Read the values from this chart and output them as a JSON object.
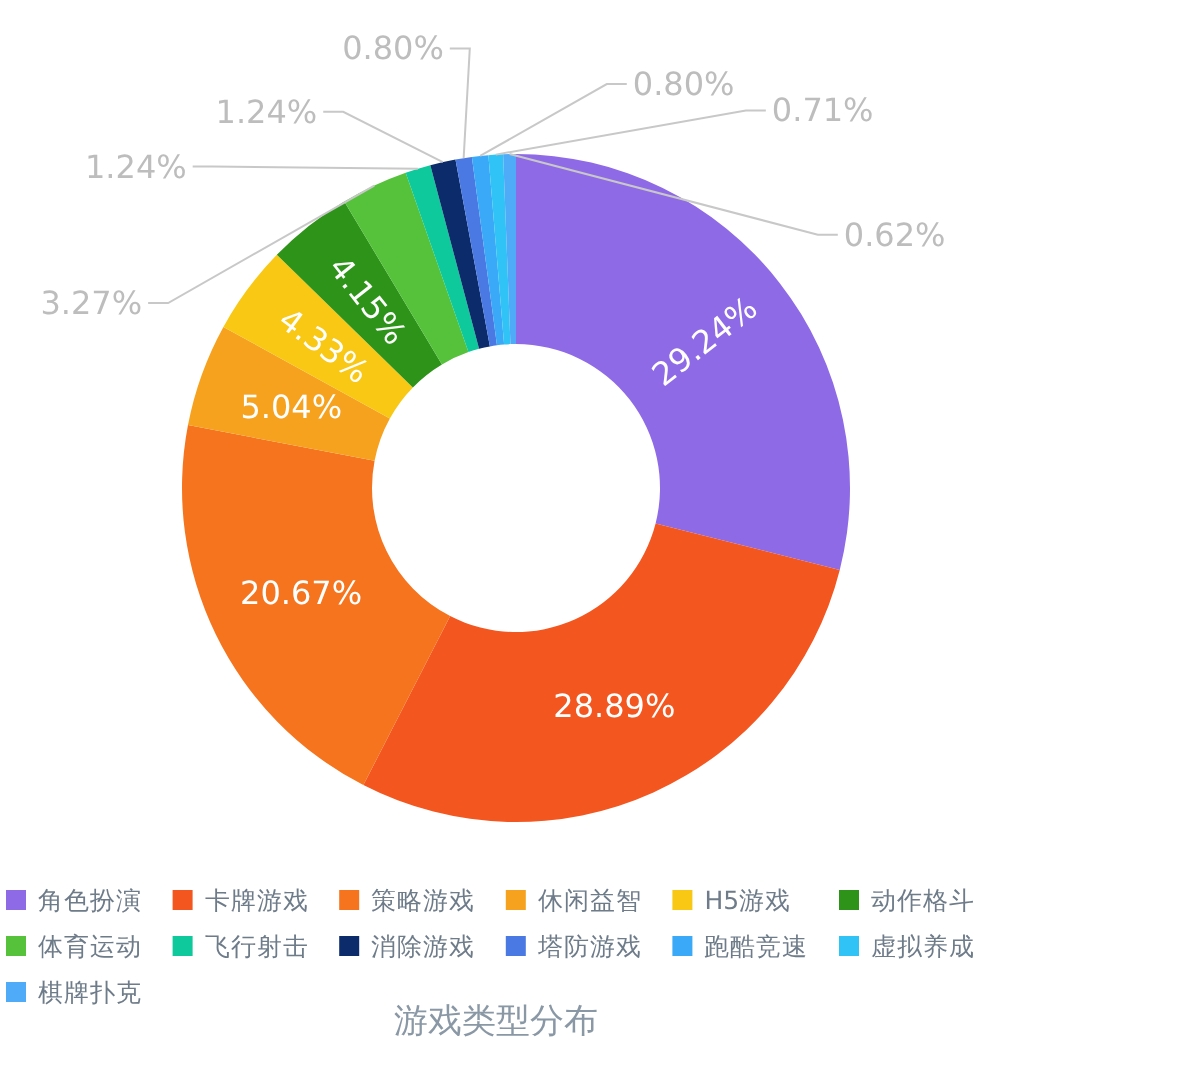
{
  "chart_data": {
    "type": "donut",
    "title": "游戏类型分布",
    "categories": [
      "角色扮演",
      "卡牌游戏",
      "策略游戏",
      "休闲益智",
      "H5游戏",
      "动作格斗",
      "体育运动",
      "飞行射击",
      "消除游戏",
      "塔防游戏",
      "跑酷竞速",
      "虚拟养成",
      "棋牌扑克"
    ],
    "values": [
      29.24,
      28.89,
      20.67,
      5.04,
      4.33,
      4.15,
      3.27,
      1.24,
      1.24,
      0.8,
      0.8,
      0.71,
      0.62
    ],
    "value_labels": [
      "29.24%",
      "28.89%",
      "20.67%",
      "5.04%",
      "4.33%",
      "4.15%",
      "3.27%",
      "1.24%",
      "1.24%",
      "0.80%",
      "0.80%",
      "0.71%",
      "0.62%"
    ],
    "colors": [
      "#8f6ae6",
      "#f4561f",
      "#f5741d",
      "#f6a21e",
      "#f8c814",
      "#2d9419",
      "#56c23b",
      "#0dc99b",
      "#0b2b6b",
      "#4a79e3",
      "#3aa9f7",
      "#2fc4f5",
      "#4faaf8"
    ],
    "legend": "bottom"
  }
}
